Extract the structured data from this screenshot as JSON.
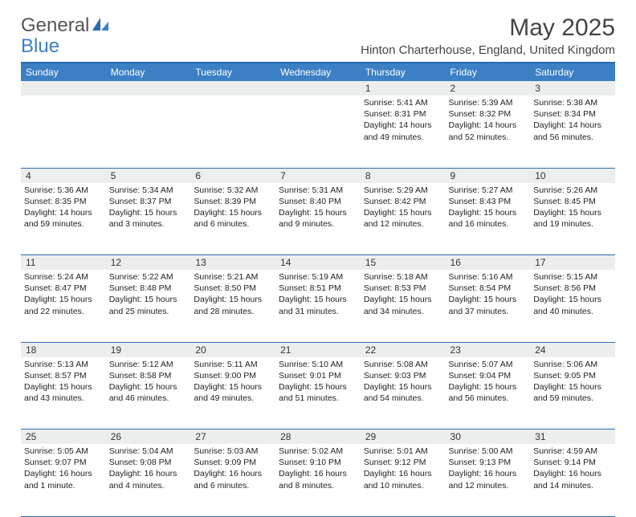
{
  "logo": {
    "text1": "General",
    "text2": "Blue"
  },
  "title": "May 2025",
  "location": "Hinton Charterhouse, England, United Kingdom",
  "colors": {
    "header_bar": "#3b7fc4",
    "rule": "#2a6ab0",
    "daynum_bg": "#eceeee",
    "text": "#333333"
  },
  "daysOfWeek": [
    "Sunday",
    "Monday",
    "Tuesday",
    "Wednesday",
    "Thursday",
    "Friday",
    "Saturday"
  ],
  "weeks": [
    [
      {
        "n": "",
        "sunrise": "",
        "sunset": "",
        "daylight": ""
      },
      {
        "n": "",
        "sunrise": "",
        "sunset": "",
        "daylight": ""
      },
      {
        "n": "",
        "sunrise": "",
        "sunset": "",
        "daylight": ""
      },
      {
        "n": "",
        "sunrise": "",
        "sunset": "",
        "daylight": ""
      },
      {
        "n": "1",
        "sunrise": "Sunrise: 5:41 AM",
        "sunset": "Sunset: 8:31 PM",
        "daylight": "Daylight: 14 hours and 49 minutes."
      },
      {
        "n": "2",
        "sunrise": "Sunrise: 5:39 AM",
        "sunset": "Sunset: 8:32 PM",
        "daylight": "Daylight: 14 hours and 52 minutes."
      },
      {
        "n": "3",
        "sunrise": "Sunrise: 5:38 AM",
        "sunset": "Sunset: 8:34 PM",
        "daylight": "Daylight: 14 hours and 56 minutes."
      }
    ],
    [
      {
        "n": "4",
        "sunrise": "Sunrise: 5:36 AM",
        "sunset": "Sunset: 8:35 PM",
        "daylight": "Daylight: 14 hours and 59 minutes."
      },
      {
        "n": "5",
        "sunrise": "Sunrise: 5:34 AM",
        "sunset": "Sunset: 8:37 PM",
        "daylight": "Daylight: 15 hours and 3 minutes."
      },
      {
        "n": "6",
        "sunrise": "Sunrise: 5:32 AM",
        "sunset": "Sunset: 8:39 PM",
        "daylight": "Daylight: 15 hours and 6 minutes."
      },
      {
        "n": "7",
        "sunrise": "Sunrise: 5:31 AM",
        "sunset": "Sunset: 8:40 PM",
        "daylight": "Daylight: 15 hours and 9 minutes."
      },
      {
        "n": "8",
        "sunrise": "Sunrise: 5:29 AM",
        "sunset": "Sunset: 8:42 PM",
        "daylight": "Daylight: 15 hours and 12 minutes."
      },
      {
        "n": "9",
        "sunrise": "Sunrise: 5:27 AM",
        "sunset": "Sunset: 8:43 PM",
        "daylight": "Daylight: 15 hours and 16 minutes."
      },
      {
        "n": "10",
        "sunrise": "Sunrise: 5:26 AM",
        "sunset": "Sunset: 8:45 PM",
        "daylight": "Daylight: 15 hours and 19 minutes."
      }
    ],
    [
      {
        "n": "11",
        "sunrise": "Sunrise: 5:24 AM",
        "sunset": "Sunset: 8:47 PM",
        "daylight": "Daylight: 15 hours and 22 minutes."
      },
      {
        "n": "12",
        "sunrise": "Sunrise: 5:22 AM",
        "sunset": "Sunset: 8:48 PM",
        "daylight": "Daylight: 15 hours and 25 minutes."
      },
      {
        "n": "13",
        "sunrise": "Sunrise: 5:21 AM",
        "sunset": "Sunset: 8:50 PM",
        "daylight": "Daylight: 15 hours and 28 minutes."
      },
      {
        "n": "14",
        "sunrise": "Sunrise: 5:19 AM",
        "sunset": "Sunset: 8:51 PM",
        "daylight": "Daylight: 15 hours and 31 minutes."
      },
      {
        "n": "15",
        "sunrise": "Sunrise: 5:18 AM",
        "sunset": "Sunset: 8:53 PM",
        "daylight": "Daylight: 15 hours and 34 minutes."
      },
      {
        "n": "16",
        "sunrise": "Sunrise: 5:16 AM",
        "sunset": "Sunset: 8:54 PM",
        "daylight": "Daylight: 15 hours and 37 minutes."
      },
      {
        "n": "17",
        "sunrise": "Sunrise: 5:15 AM",
        "sunset": "Sunset: 8:56 PM",
        "daylight": "Daylight: 15 hours and 40 minutes."
      }
    ],
    [
      {
        "n": "18",
        "sunrise": "Sunrise: 5:13 AM",
        "sunset": "Sunset: 8:57 PM",
        "daylight": "Daylight: 15 hours and 43 minutes."
      },
      {
        "n": "19",
        "sunrise": "Sunrise: 5:12 AM",
        "sunset": "Sunset: 8:58 PM",
        "daylight": "Daylight: 15 hours and 46 minutes."
      },
      {
        "n": "20",
        "sunrise": "Sunrise: 5:11 AM",
        "sunset": "Sunset: 9:00 PM",
        "daylight": "Daylight: 15 hours and 49 minutes."
      },
      {
        "n": "21",
        "sunrise": "Sunrise: 5:10 AM",
        "sunset": "Sunset: 9:01 PM",
        "daylight": "Daylight: 15 hours and 51 minutes."
      },
      {
        "n": "22",
        "sunrise": "Sunrise: 5:08 AM",
        "sunset": "Sunset: 9:03 PM",
        "daylight": "Daylight: 15 hours and 54 minutes."
      },
      {
        "n": "23",
        "sunrise": "Sunrise: 5:07 AM",
        "sunset": "Sunset: 9:04 PM",
        "daylight": "Daylight: 15 hours and 56 minutes."
      },
      {
        "n": "24",
        "sunrise": "Sunrise: 5:06 AM",
        "sunset": "Sunset: 9:05 PM",
        "daylight": "Daylight: 15 hours and 59 minutes."
      }
    ],
    [
      {
        "n": "25",
        "sunrise": "Sunrise: 5:05 AM",
        "sunset": "Sunset: 9:07 PM",
        "daylight": "Daylight: 16 hours and 1 minute."
      },
      {
        "n": "26",
        "sunrise": "Sunrise: 5:04 AM",
        "sunset": "Sunset: 9:08 PM",
        "daylight": "Daylight: 16 hours and 4 minutes."
      },
      {
        "n": "27",
        "sunrise": "Sunrise: 5:03 AM",
        "sunset": "Sunset: 9:09 PM",
        "daylight": "Daylight: 16 hours and 6 minutes."
      },
      {
        "n": "28",
        "sunrise": "Sunrise: 5:02 AM",
        "sunset": "Sunset: 9:10 PM",
        "daylight": "Daylight: 16 hours and 8 minutes."
      },
      {
        "n": "29",
        "sunrise": "Sunrise: 5:01 AM",
        "sunset": "Sunset: 9:12 PM",
        "daylight": "Daylight: 16 hours and 10 minutes."
      },
      {
        "n": "30",
        "sunrise": "Sunrise: 5:00 AM",
        "sunset": "Sunset: 9:13 PM",
        "daylight": "Daylight: 16 hours and 12 minutes."
      },
      {
        "n": "31",
        "sunrise": "Sunrise: 4:59 AM",
        "sunset": "Sunset: 9:14 PM",
        "daylight": "Daylight: 16 hours and 14 minutes."
      }
    ]
  ]
}
